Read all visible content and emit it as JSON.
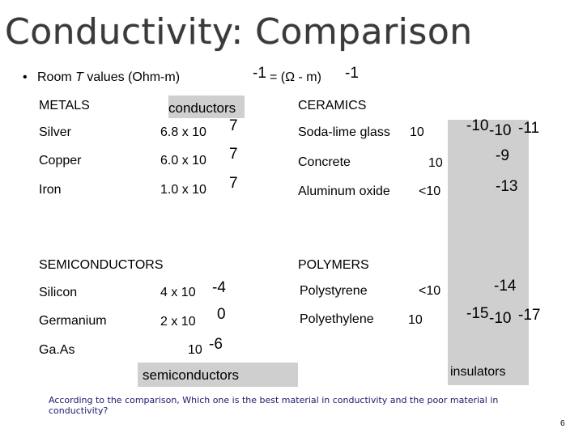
{
  "title": "Conductivity:  Comparison",
  "subtitle": {
    "bullet": "•",
    "prefix": "Room ",
    "var": "T",
    "suffix": " values (Ohm-m)",
    "unit_exp_left": "-1",
    "unit_body": "= (Ω - m)",
    "unit_exp_right": "-1"
  },
  "metals": {
    "header": "METALS",
    "group_label": "conductors",
    "rows": [
      {
        "name": "Silver",
        "base": "6.8 x 10",
        "exp": "7"
      },
      {
        "name": "Copper",
        "base": "6.0 x 10",
        "exp": "7"
      },
      {
        "name": "Iron",
        "base": "1.0 x 10",
        "exp": "7"
      }
    ]
  },
  "ceramics": {
    "header": "CERAMICS",
    "rows": [
      {
        "name": "Soda-lime glass",
        "base": "10",
        "exp": "-10",
        "exp_b": "-10",
        "exp_c": "-11"
      },
      {
        "name": "Concrete",
        "base": "10",
        "exp": "-9"
      },
      {
        "name": "Aluminum oxide",
        "base": "<10",
        "exp": "-13"
      }
    ]
  },
  "semiconductors": {
    "header": "SEMICONDUCTORS",
    "group_label": "semiconductors",
    "rows": [
      {
        "name": "Silicon",
        "base": "4 x 10",
        "exp": "-4"
      },
      {
        "name": "Germanium",
        "base": "2 x 10",
        "exp": "0"
      },
      {
        "name": "Ga.As",
        "base": "10",
        "exp": "-6"
      }
    ]
  },
  "polymers": {
    "header": "POLYMERS",
    "group_label": "insulators",
    "rows": [
      {
        "name": "Polystyrene",
        "base": "<10",
        "exp": "-14"
      },
      {
        "name": "Polyethylene",
        "base": "10",
        "exp": "-15",
        "exp_b": "-10",
        "exp_c": "-17"
      }
    ]
  },
  "question": "According to the comparison, Which one is the best material in conductivity and the  poor material in conductivity?",
  "page_number": "6",
  "colors": {
    "title": "#3a3a3a",
    "highlight": "#cfcfcf",
    "question": "#1a1a6e"
  }
}
